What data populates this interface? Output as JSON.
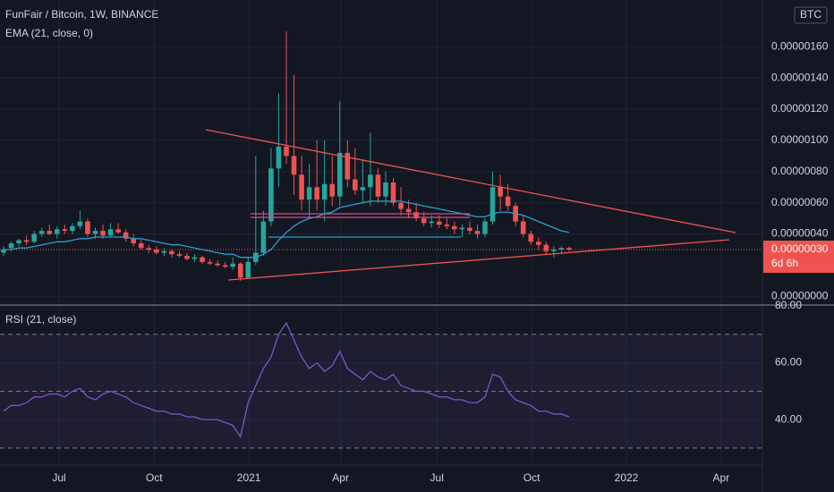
{
  "chart_data": [
    {
      "type": "candlestick",
      "title": "FunFair / Bitcoin, 1W, BINANCE",
      "currency": "BTC",
      "open": [
        2.8e-07,
        3.1e-07,
        3.4e-07,
        3.6e-07,
        3.5e-07,
        4e-07,
        4.2e-07,
        4e-07,
        4.3e-07,
        4.2e-07,
        4.5e-07,
        4.8e-07,
        4e-07,
        4.2e-07,
        3.9e-07,
        4.3e-07,
        4.1e-07,
        3.7e-07,
        3.4e-07,
        3.1e-07,
        3e-07,
        2.8e-07,
        2.9e-07,
        2.7e-07,
        2.6e-07,
        2.4e-07,
        2.5e-07,
        2.2e-07,
        2.1e-07,
        2e-07,
        1.9e-07,
        2.1e-07,
        1.2e-07,
        2.2e-07,
        2.8e-07,
        4.8e-07,
        8.2e-07,
        9.6e-07,
        9e-07,
        7.8e-07,
        6.2e-07,
        7e-07,
        6.2e-07,
        7.2e-07,
        6.4e-07,
        9.2e-07,
        7.5e-07,
        6.8e-07,
        7e-07,
        7.8e-07,
        6.4e-07,
        7.3e-07,
        6e-07,
        5.6e-07,
        5.4e-07,
        5e-07,
        4.7e-07,
        4.8e-07,
        4.6e-07,
        4.5e-07,
        4.3e-07,
        4.4e-07,
        4.2e-07,
        4e-07,
        4.8e-07,
        7e-07,
        6.4e-07,
        5.8e-07,
        4.8e-07,
        4e-07,
        3.5e-07,
        3.3e-07,
        2.9e-07,
        3e-07,
        3.1e-07
      ],
      "high": [
        3.2e-07,
        3.5e-07,
        3.7e-07,
        3.9e-07,
        4.2e-07,
        4.4e-07,
        4.6e-07,
        4.5e-07,
        4.6e-07,
        4.7e-07,
        5.5e-07,
        5e-07,
        4.4e-07,
        4.6e-07,
        4.7e-07,
        4.7e-07,
        4.3e-07,
        4e-07,
        3.6e-07,
        3.3e-07,
        3.2e-07,
        3.1e-07,
        3e-07,
        2.9e-07,
        2.8e-07,
        2.7e-07,
        2.6e-07,
        2.4e-07,
        2.3e-07,
        2.2e-07,
        2.5e-07,
        2.2e-07,
        2.5e-07,
        9e-07,
        5.5e-07,
        9.5e-07,
        1.3e-06,
        1.7e-06,
        1.42e-06,
        9e-07,
        8.5e-07,
        1e-06,
        1e-06,
        9e-07,
        1.25e-06,
        1e-06,
        9.5e-07,
        8.8e-07,
        1.05e-06,
        8.2e-07,
        8e-07,
        7.6e-07,
        7e-07,
        6.2e-07,
        6e-07,
        5.4e-07,
        5.2e-07,
        5.2e-07,
        5e-07,
        4.8e-07,
        4.6e-07,
        4.8e-07,
        4.6e-07,
        5e-07,
        8e-07,
        7.8e-07,
        7.2e-07,
        6e-07,
        5.2e-07,
        4.2e-07,
        3.8e-07,
        3.5e-07,
        3.2e-07,
        3.2e-07,
        3.2e-07
      ],
      "low": [
        2.6e-07,
        2.9e-07,
        3.2e-07,
        3.3e-07,
        3.4e-07,
        3.8e-07,
        3.9e-07,
        3.7e-07,
        4e-07,
        4e-07,
        4.3e-07,
        3.8e-07,
        3.7e-07,
        3.7e-07,
        3.8e-07,
        4e-07,
        3.5e-07,
        3.2e-07,
        3e-07,
        2.8e-07,
        2.7e-07,
        2.6e-07,
        2.5e-07,
        2.5e-07,
        2.3e-07,
        2.2e-07,
        2.1e-07,
        2e-07,
        1.9e-07,
        1.8e-07,
        1.7e-07,
        1e-07,
        1.1e-07,
        2e-07,
        2.6e-07,
        4.5e-07,
        7e-07,
        8.5e-07,
        6.5e-07,
        5.5e-07,
        5e-07,
        5.5e-07,
        4.8e-07,
        5.8e-07,
        5.8e-07,
        7e-07,
        6.5e-07,
        6e-07,
        5.8e-07,
        6e-07,
        5.8e-07,
        5.8e-07,
        5.2e-07,
        5e-07,
        4.8e-07,
        4.5e-07,
        4.4e-07,
        4.4e-07,
        4.3e-07,
        4e-07,
        3.8e-07,
        4e-07,
        3.7e-07,
        3.8e-07,
        4.6e-07,
        5.5e-07,
        5.5e-07,
        4.5e-07,
        3.8e-07,
        3.3e-07,
        3e-07,
        2.7e-07,
        2.5e-07,
        2.7e-07,
        2.9e-07
      ],
      "close": [
        3e-07,
        3.4e-07,
        3.6e-07,
        3.5e-07,
        4e-07,
        4.2e-07,
        4e-07,
        4.3e-07,
        4.2e-07,
        4.5e-07,
        4.8e-07,
        4e-07,
        4.2e-07,
        3.9e-07,
        4.3e-07,
        4.1e-07,
        3.7e-07,
        3.4e-07,
        3.1e-07,
        3e-07,
        2.8e-07,
        2.9e-07,
        2.7e-07,
        2.6e-07,
        2.4e-07,
        2.5e-07,
        2.2e-07,
        2.1e-07,
        2e-07,
        1.9e-07,
        2.1e-07,
        1.2e-07,
        2.2e-07,
        2.8e-07,
        4.8e-07,
        8.2e-07,
        9.6e-07,
        9e-07,
        7.8e-07,
        6.2e-07,
        7e-07,
        6.2e-07,
        7.2e-07,
        6.4e-07,
        9.2e-07,
        7.5e-07,
        6.8e-07,
        7e-07,
        7.8e-07,
        6.4e-07,
        7.3e-07,
        6e-07,
        5.6e-07,
        5.4e-07,
        5e-07,
        4.7e-07,
        4.8e-07,
        4.6e-07,
        4.5e-07,
        4.3e-07,
        4.4e-07,
        4.2e-07,
        4e-07,
        4.8e-07,
        7e-07,
        6.4e-07,
        5.8e-07,
        4.8e-07,
        4e-07,
        3.5e-07,
        3.3e-07,
        2.9e-07,
        3e-07,
        3.1e-07,
        3e-07
      ],
      "up_color": "#26a69a",
      "down_color": "#ef5350",
      "series": [
        {
          "name": "EMA (21, close, 0)",
          "color": "#2a9fd0",
          "values": [
            3e-07,
            3e-07,
            3.1e-07,
            3.1e-07,
            3.2e-07,
            3.3e-07,
            3.4e-07,
            3.5e-07,
            3.5e-07,
            3.6e-07,
            3.7e-07,
            3.7e-07,
            3.8e-07,
            3.8e-07,
            3.8e-07,
            3.8e-07,
            3.8e-07,
            3.7e-07,
            3.7e-07,
            3.6e-07,
            3.5e-07,
            3.4e-07,
            3.3e-07,
            3.3e-07,
            3.2e-07,
            3.1e-07,
            3e-07,
            2.9e-07,
            2.8e-07,
            2.7e-07,
            2.7e-07,
            2.5e-07,
            2.5e-07,
            2.5e-07,
            2.7e-07,
            3e-07,
            3.6e-07,
            4.1e-07,
            4.5e-07,
            4.8e-07,
            5e-07,
            5.1e-07,
            5.3e-07,
            5.4e-07,
            5.7e-07,
            5.8e-07,
            5.9e-07,
            6e-07,
            6.1e-07,
            6.1e-07,
            6.1e-07,
            6.1e-07,
            6.1e-07,
            6e-07,
            5.9e-07,
            5.8e-07,
            5.7e-07,
            5.6e-07,
            5.5e-07,
            5.4e-07,
            5.3e-07,
            5.2e-07,
            5.1e-07,
            5.1e-07,
            5.3e-07,
            5.4e-07,
            5.4e-07,
            5.3e-07,
            5.2e-07,
            5e-07,
            4.8e-07,
            4.6e-07,
            4.4e-07,
            4.2e-07,
            4.1e-07
          ]
        }
      ],
      "last_price": {
        "value": 3e-07,
        "label": "0.00000030"
      },
      "countdown": "6d 6h",
      "ylim": [
        -5e-08,
        1.9e-06
      ],
      "yticks": [
        {
          "value": 0,
          "label": "0.00000000"
        },
        {
          "value": 4e-07,
          "label": "0.00000040"
        },
        {
          "value": 6e-07,
          "label": "0.00000060"
        },
        {
          "value": 8e-07,
          "label": "0.00000080"
        },
        {
          "value": 1e-06,
          "label": "0.00000100"
        },
        {
          "value": 1.2e-06,
          "label": "0.00000120"
        },
        {
          "value": 1.4e-06,
          "label": "0.00000140"
        },
        {
          "value": 1.6e-06,
          "label": "0.00000160"
        }
      ],
      "xlim": [
        -0.47,
        99.3
      ],
      "xticks": [
        {
          "value": 7.26,
          "label": "Jul"
        },
        {
          "value": 19.7,
          "label": "Oct"
        },
        {
          "value": 32.1,
          "label": "2021"
        },
        {
          "value": 44.1,
          "label": "Apr"
        },
        {
          "value": 56.7,
          "label": "Jul"
        },
        {
          "value": 69.1,
          "label": "Oct"
        },
        {
          "value": 81.5,
          "label": "2022"
        },
        {
          "value": 93.9,
          "label": "Apr"
        }
      ],
      "grid": true
    },
    {
      "type": "line",
      "series": [
        {
          "name": "RSI (21, close)",
          "color": "#7e57c2",
          "values": [
            43,
            45,
            45,
            46,
            48,
            48,
            49,
            49,
            48,
            50,
            51,
            48,
            47,
            49,
            50,
            49,
            48,
            46,
            45,
            44,
            43,
            43,
            42,
            42,
            41,
            41,
            40,
            40,
            40,
            39,
            38,
            34,
            46,
            52,
            58,
            62,
            70,
            74,
            68,
            62,
            58,
            60,
            57,
            59,
            64,
            58,
            56,
            54,
            57,
            55,
            54,
            56,
            52,
            51,
            50,
            50,
            49,
            48,
            48,
            47,
            47,
            46,
            46,
            48,
            56,
            55,
            50,
            47,
            46,
            45,
            43,
            43,
            42,
            42,
            41
          ]
        }
      ],
      "bands": [
        30,
        50,
        70
      ],
      "ylim": [
        24,
        80
      ],
      "yticks": [
        {
          "value": 40,
          "label": "40.00"
        },
        {
          "value": 60,
          "label": "60.00"
        },
        {
          "value": 80,
          "label": "80.00"
        }
      ]
    }
  ]
}
